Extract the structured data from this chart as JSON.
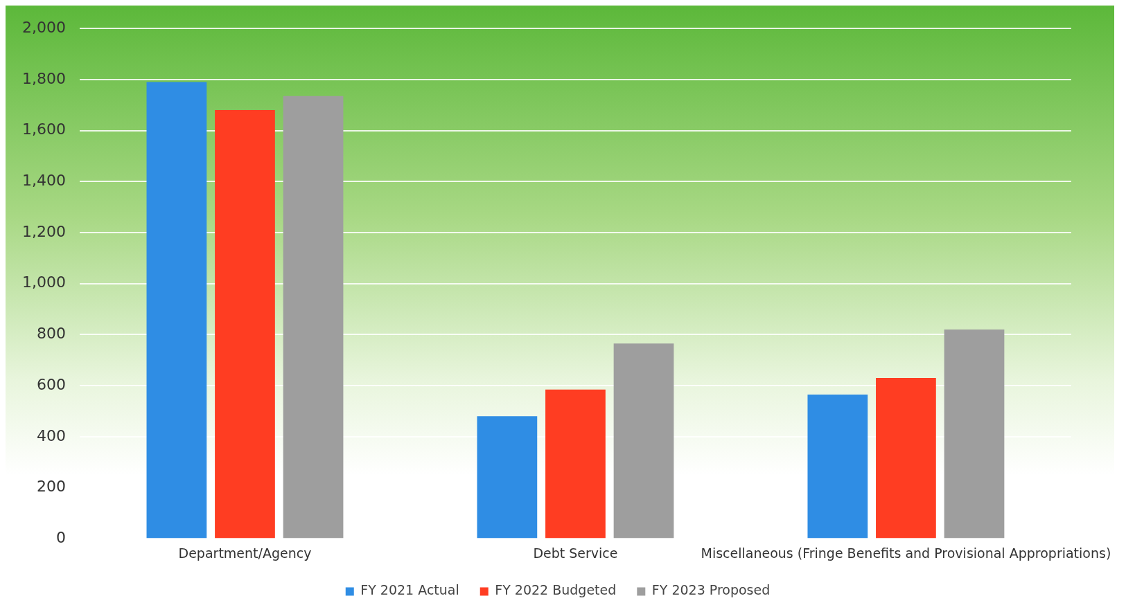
{
  "chart_data": {
    "type": "bar",
    "categories": [
      "Department/Agency",
      "Debt Service",
      "Miscellaneous (Fringe Benefits and Provisional Appropriations)"
    ],
    "series": [
      {
        "name": "FY 2021 Actual",
        "color": "#2f8de4",
        "values": [
          1790,
          480,
          565
        ]
      },
      {
        "name": "FY 2022 Budgeted",
        "color": "#ff3d22",
        "values": [
          1680,
          585,
          630
        ]
      },
      {
        "name": "FY 2023 Proposed",
        "color": "#9e9e9e",
        "values": [
          1735,
          765,
          820
        ]
      }
    ],
    "ylim": [
      0,
      2000
    ],
    "yticks": [
      {
        "value": 0,
        "label": "0"
      },
      {
        "value": 200,
        "label": "200"
      },
      {
        "value": 400,
        "label": "400"
      },
      {
        "value": 600,
        "label": "600"
      },
      {
        "value": 800,
        "label": "800"
      },
      {
        "value": 1000,
        "label": "1,000"
      },
      {
        "value": 1200,
        "label": "1,200"
      },
      {
        "value": 1400,
        "label": "1,400"
      },
      {
        "value": 1600,
        "label": "1,600"
      },
      {
        "value": 1800,
        "label": "1,800"
      },
      {
        "value": 2000,
        "label": "2,000"
      }
    ],
    "grid": "y",
    "legend": "bottom"
  }
}
